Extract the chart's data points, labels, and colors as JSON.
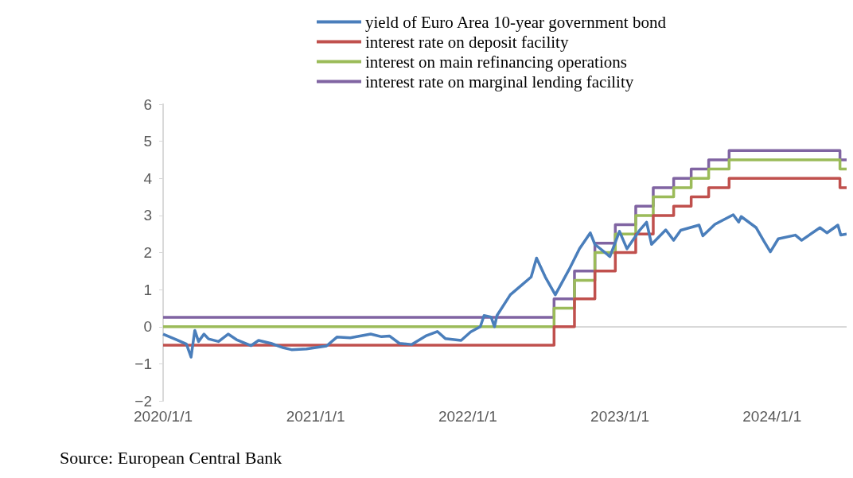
{
  "chart_data": {
    "type": "step",
    "xlim": [
      "2020-01-01",
      "2024-06-28"
    ],
    "xticks": [
      {
        "value": "2020-01-01",
        "label": "2020/1/1"
      },
      {
        "value": "2021-01-01",
        "label": "2021/1/1"
      },
      {
        "value": "2022-01-01",
        "label": "2022/1/1"
      },
      {
        "value": "2023-01-01",
        "label": "2023/1/1"
      },
      {
        "value": "2024-01-01",
        "label": "2024/1/1"
      }
    ],
    "ylim": [
      -2,
      6
    ],
    "yticks": [
      {
        "value": -2,
        "label": "−2"
      },
      {
        "value": -1,
        "label": "−1"
      },
      0,
      1,
      2,
      3,
      4,
      5,
      6
    ],
    "grid": false,
    "legend": "top",
    "line_style": "solid",
    "marker": "none",
    "ref_lines": [
      {
        "axis": "y",
        "value": 0,
        "color": "#d9d9d9"
      }
    ],
    "annotations": [
      "Source: European Central Bank"
    ],
    "series": [
      {
        "name": "yield of Euro Area 10-year government bond",
        "type": "line",
        "color": "#4a7ebb",
        "x": [
          "2020-01-01",
          "2020-02-02",
          "2020-02-26",
          "2020-03-08",
          "2020-03-17",
          "2020-03-26",
          "2020-04-08",
          "2020-04-19",
          "2020-05-13",
          "2020-06-05",
          "2020-06-25",
          "2020-07-30",
          "2020-08-17",
          "2020-09-16",
          "2020-10-16",
          "2020-11-04",
          "2020-12-10",
          "2021-01-27",
          "2021-02-21",
          "2021-03-25",
          "2021-05-13",
          "2021-06-08",
          "2021-06-27",
          "2021-07-21",
          "2021-08-19",
          "2021-09-22",
          "2021-10-20",
          "2021-11-08",
          "2021-12-16",
          "2022-01-08",
          "2022-01-31",
          "2022-02-09",
          "2022-02-26",
          "2022-03-06",
          "2022-03-12",
          "2022-04-13",
          "2022-05-11",
          "2022-06-02",
          "2022-06-15",
          "2022-07-06",
          "2022-07-30",
          "2022-09-01",
          "2022-09-26",
          "2022-10-22",
          "2022-11-02",
          "2022-12-08",
          "2022-12-31",
          "2023-01-18",
          "2023-02-18",
          "2023-03-06",
          "2023-03-18",
          "2023-04-21",
          "2023-05-10",
          "2023-05-27",
          "2023-07-10",
          "2023-07-19",
          "2023-08-17",
          "2023-09-30",
          "2023-10-13",
          "2023-10-19",
          "2023-11-24",
          "2023-12-13",
          "2023-12-28",
          "2024-01-16",
          "2024-02-26",
          "2024-03-12",
          "2024-04-25",
          "2024-05-12",
          "2024-06-07",
          "2024-06-14",
          "2024-06-28"
        ],
        "values": [
          -0.2,
          -0.35,
          -0.47,
          -0.82,
          -0.1,
          -0.4,
          -0.2,
          -0.33,
          -0.4,
          -0.2,
          -0.35,
          -0.51,
          -0.37,
          -0.45,
          -0.57,
          -0.62,
          -0.6,
          -0.52,
          -0.28,
          -0.3,
          -0.2,
          -0.27,
          -0.25,
          -0.45,
          -0.48,
          -0.25,
          -0.13,
          -0.32,
          -0.37,
          -0.14,
          0,
          0.3,
          0.26,
          0,
          0.3,
          0.86,
          1.13,
          1.34,
          1.85,
          1.34,
          0.86,
          1.54,
          2.1,
          2.53,
          2.22,
          1.89,
          2.57,
          2.1,
          2.61,
          2.82,
          2.22,
          2.61,
          2.33,
          2.6,
          2.74,
          2.45,
          2.76,
          3.02,
          2.82,
          2.97,
          2.67,
          2.3,
          2.02,
          2.37,
          2.47,
          2.33,
          2.67,
          2.53,
          2.74,
          2.47,
          2.5
        ]
      },
      {
        "name": "interest rate on deposit facility",
        "color": "#c0504d",
        "x": [
          "2020-01-01",
          "2022-07-27",
          "2022-09-14",
          "2022-11-02",
          "2022-12-21",
          "2023-02-08",
          "2023-03-22",
          "2023-05-10",
          "2023-06-21",
          "2023-08-02",
          "2023-09-20",
          "2024-06-12",
          "2024-06-28"
        ],
        "values": [
          -0.5,
          0,
          0.75,
          1.5,
          2,
          2.5,
          3,
          3.25,
          3.5,
          3.75,
          4,
          3.75,
          3.75
        ]
      },
      {
        "name": "interest on main refinancing operations",
        "color": "#9bbb59",
        "x": [
          "2020-01-01",
          "2022-07-27",
          "2022-09-14",
          "2022-11-02",
          "2022-12-21",
          "2023-02-08",
          "2023-03-22",
          "2023-05-10",
          "2023-06-21",
          "2023-08-02",
          "2023-09-20",
          "2024-06-12",
          "2024-06-28"
        ],
        "values": [
          0,
          0.5,
          1.25,
          2,
          2.5,
          3,
          3.5,
          3.75,
          4,
          4.25,
          4.5,
          4.25,
          4.25
        ]
      },
      {
        "name": "interest rate on marginal lending facility",
        "color": "#8064a2",
        "x": [
          "2020-01-01",
          "2022-07-27",
          "2022-09-14",
          "2022-11-02",
          "2022-12-21",
          "2023-02-08",
          "2023-03-22",
          "2023-05-10",
          "2023-06-21",
          "2023-08-02",
          "2023-09-20",
          "2024-06-12",
          "2024-06-28"
        ],
        "values": [
          0.25,
          0.75,
          1.5,
          2.25,
          2.75,
          3.25,
          3.75,
          4,
          4.25,
          4.5,
          4.75,
          4.5,
          4.5
        ]
      }
    ]
  }
}
